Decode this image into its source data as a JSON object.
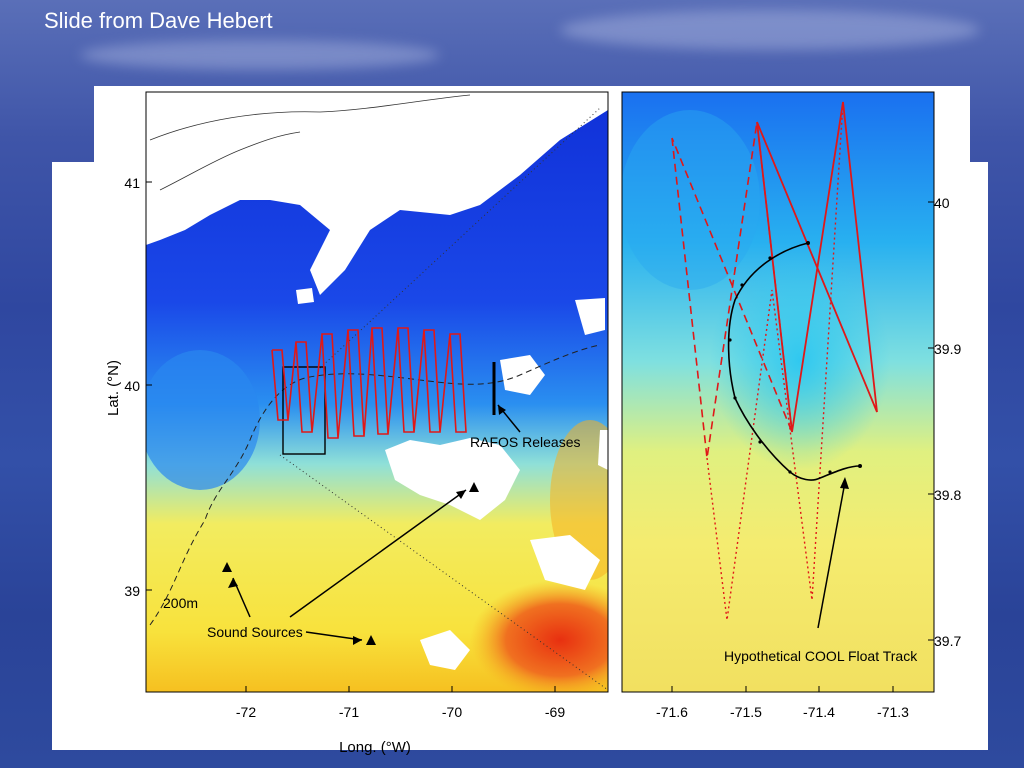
{
  "slide": {
    "title": "Slide from Dave Hebert"
  },
  "left_map": {
    "y_axis_label": "Lat. (°N)",
    "x_axis_label": "Long. (°W)",
    "y_ticks": [
      "41",
      "40",
      "39"
    ],
    "x_ticks": [
      "-72",
      "-71",
      "-70",
      "-69"
    ],
    "annotations": {
      "rafos": "RAFOS Releases",
      "sound": "Sound Sources",
      "isobath": "200m"
    }
  },
  "right_map": {
    "y_ticks": [
      "40",
      "39.9",
      "39.8",
      "39.7"
    ],
    "x_ticks": [
      "-71.6",
      "-71.5",
      "-71.4",
      "-71.3"
    ],
    "annotation": "Hypothetical COOL Float Track"
  },
  "colors": {
    "warm_yellow": "#f5e85a",
    "cold_blue": "#1a3fe0",
    "track_red": "#e01818",
    "track_black": "#000000"
  }
}
